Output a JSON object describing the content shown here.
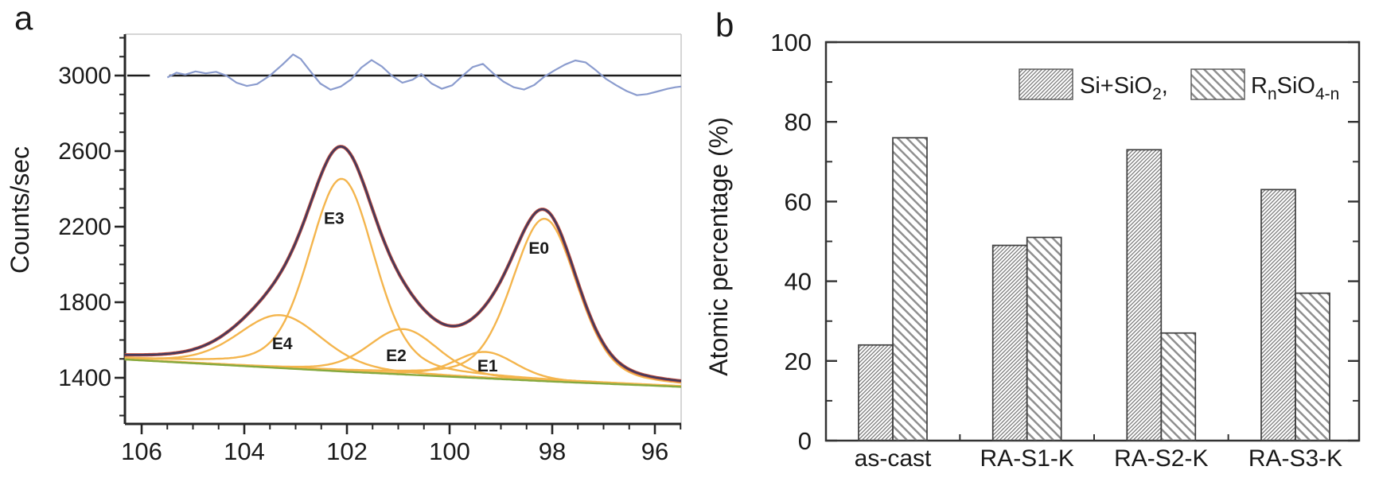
{
  "figure": {
    "panel_a_label": "a",
    "panel_b_label": "b"
  },
  "chart_data": [
    {
      "id": "xps-spectrum",
      "type": "line",
      "title": "",
      "xlabel": "",
      "ylabel": "Counts/sec",
      "x_axis": {
        "ticks": [
          106,
          104,
          102,
          100,
          98,
          96
        ],
        "minor_step": 0.5,
        "range": [
          106.33,
          95.49
        ],
        "direction": "reversed"
      },
      "y_axis": {
        "ticks": [
          1400,
          1800,
          2200,
          2600,
          3000
        ],
        "minor_step": 100,
        "range": [
          1156,
          3219
        ]
      },
      "reference_line": {
        "y": 3000,
        "color": "#1c1c1c",
        "segments": [
          [
            106.28,
            105.84
          ],
          [
            105.46,
            95.49
          ]
        ]
      },
      "residual": {
        "color": "#8b9cce",
        "mean": 3000,
        "points": [
          [
            105.5,
            2990
          ],
          [
            105.32,
            3015
          ],
          [
            105.15,
            3005
          ],
          [
            104.95,
            3022
          ],
          [
            104.75,
            3012
          ],
          [
            104.55,
            3020
          ],
          [
            104.35,
            3000
          ],
          [
            104.15,
            2962
          ],
          [
            103.95,
            2945
          ],
          [
            103.75,
            2955
          ],
          [
            103.5,
            3000
          ],
          [
            103.25,
            3060
          ],
          [
            103.05,
            3112
          ],
          [
            102.9,
            3088
          ],
          [
            102.72,
            3025
          ],
          [
            102.52,
            2958
          ],
          [
            102.32,
            2925
          ],
          [
            102.12,
            2942
          ],
          [
            101.92,
            2980
          ],
          [
            101.72,
            3042
          ],
          [
            101.52,
            3082
          ],
          [
            101.32,
            3048
          ],
          [
            101.12,
            2998
          ],
          [
            100.92,
            2962
          ],
          [
            100.72,
            2978
          ],
          [
            100.55,
            3008
          ],
          [
            100.35,
            2958
          ],
          [
            100.15,
            2930
          ],
          [
            99.95,
            2948
          ],
          [
            99.75,
            2998
          ],
          [
            99.55,
            3045
          ],
          [
            99.35,
            3062
          ],
          [
            99.15,
            3012
          ],
          [
            98.95,
            2968
          ],
          [
            98.75,
            2938
          ],
          [
            98.55,
            2926
          ],
          [
            98.35,
            2950
          ],
          [
            98.15,
            2995
          ],
          [
            97.95,
            3028
          ],
          [
            97.75,
            3058
          ],
          [
            97.55,
            3080
          ],
          [
            97.35,
            3070
          ],
          [
            97.15,
            3028
          ],
          [
            96.95,
            2982
          ],
          [
            96.75,
            2948
          ],
          [
            96.55,
            2918
          ],
          [
            96.35,
            2896
          ],
          [
            96.15,
            2902
          ],
          [
            95.95,
            2916
          ],
          [
            95.75,
            2930
          ],
          [
            95.6,
            2938
          ],
          [
            95.49,
            2942
          ]
        ]
      },
      "baseline": {
        "name": "background",
        "color": "#86a93f",
        "points": [
          [
            106.33,
            1497
          ],
          [
            104,
            1462
          ],
          [
            102,
            1432
          ],
          [
            100,
            1406
          ],
          [
            98,
            1380
          ],
          [
            96,
            1358
          ],
          [
            95.49,
            1352
          ]
        ]
      },
      "components": {
        "color": "#f4b54d",
        "peaks": [
          {
            "label": "E4",
            "center": 103.3,
            "amplitude": 280,
            "sigma": 0.8,
            "label_at": [
              103.26,
              1581
            ]
          },
          {
            "label": "E3",
            "center": 102.1,
            "amplitude": 1020,
            "sigma": 0.62,
            "label_at": [
              102.25,
              2245
            ]
          },
          {
            "label": "E2",
            "center": 100.9,
            "amplitude": 240,
            "sigma": 0.66,
            "label_at": [
              101.04,
              1518
            ]
          },
          {
            "label": "E1",
            "center": 99.3,
            "amplitude": 140,
            "sigma": 0.58,
            "label_at": [
              99.26,
              1463
            ]
          },
          {
            "label": "E0",
            "center": 98.15,
            "amplitude": 860,
            "sigma": 0.62,
            "label_at": [
              98.26,
              2086
            ]
          }
        ]
      },
      "envelope": {
        "outer_color": "#c44f3f",
        "inner_color": "#42395c",
        "definition": "baseline + sum of component peaks"
      }
    },
    {
      "id": "atomic-percentage",
      "type": "bar",
      "title": "",
      "xlabel": "",
      "ylabel": "Atomic percentage (%)",
      "categories": [
        "as-cast",
        "RA-S1-K",
        "RA-S2-K",
        "RA-S3-K"
      ],
      "series": [
        {
          "name": "Si+SiO2",
          "hatch": "dense-forward-diagonal",
          "values": [
            24,
            49,
            73,
            63
          ],
          "label_parts": {
            "main": "Si+SiO",
            "sub": "2",
            "suffix": ","
          }
        },
        {
          "name": "RnSiO4-n",
          "hatch": "sparse-back-diagonal",
          "values": [
            76,
            51,
            27,
            37
          ],
          "label_parts": {
            "p1": "R",
            "s1": "n",
            "p2": "SiO",
            "s2": "4-n"
          }
        }
      ],
      "y_axis": {
        "ticks": [
          0,
          20,
          40,
          60,
          80,
          100
        ],
        "minor_step": 10,
        "range": [
          0,
          100
        ]
      },
      "legend_position": "top-right-inside",
      "hatch_colors": {
        "series1_line": "#6e6e6e",
        "series2_line": "#8f8f8f",
        "bar_border": "#3f3f3f"
      }
    }
  ]
}
